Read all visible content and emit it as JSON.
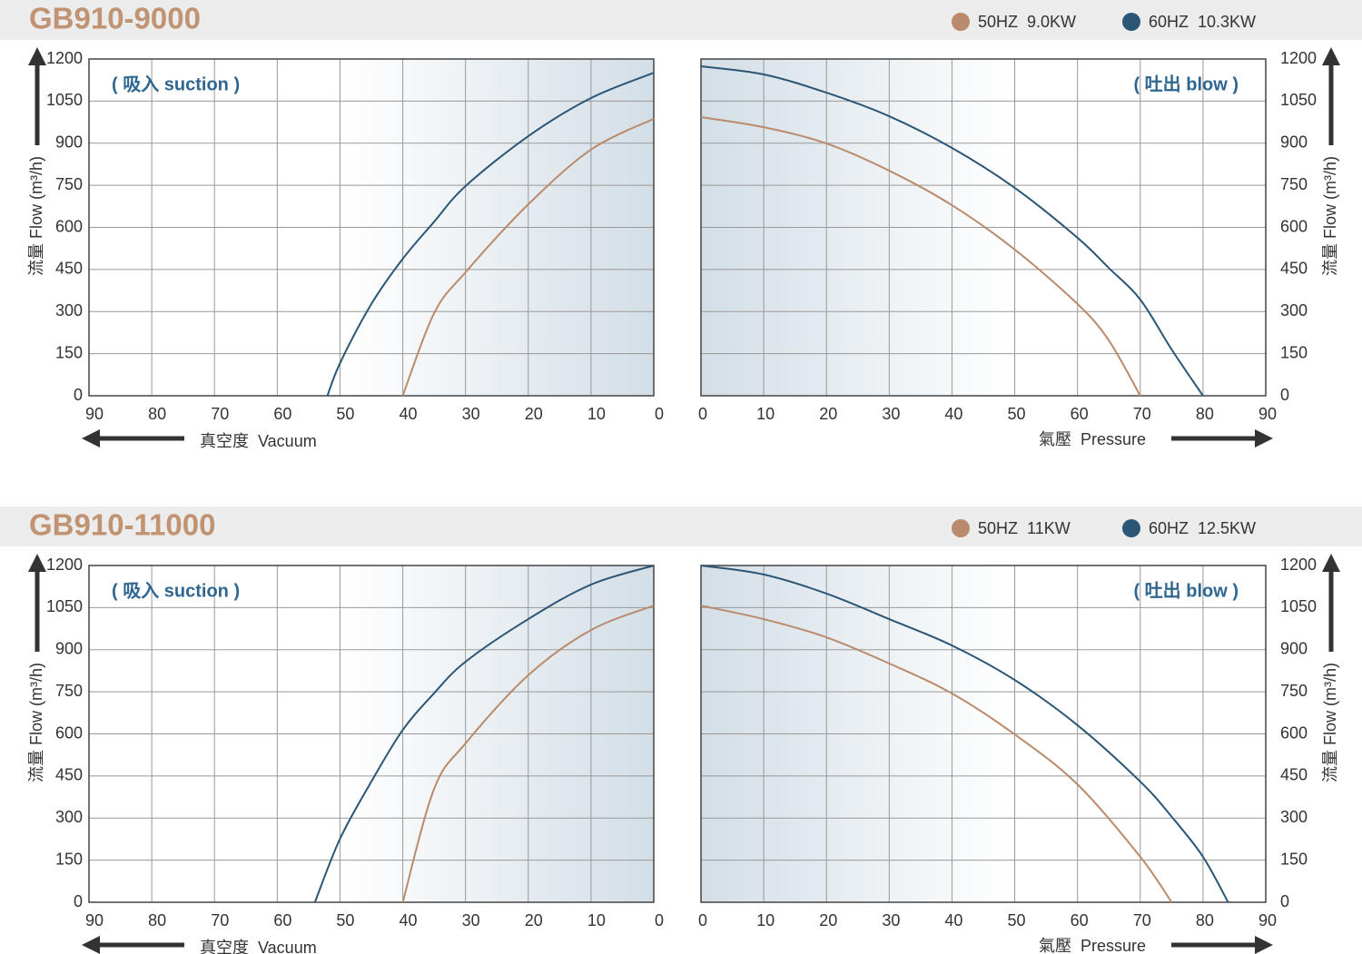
{
  "chart_data": [
    {
      "type": "line",
      "title": "GB910-9000",
      "series": [
        {
          "name": "50HZ  9.0KW",
          "color": "#b98b6c"
        },
        {
          "name": "60HZ  10.3KW",
          "color": "#2c5675"
        }
      ],
      "panels": [
        {
          "annotation": "( 吸入 suction )",
          "x_label": "真空度  Vacuum",
          "y_label": "流量 Flow (m³/h)",
          "xlim": [
            90,
            0
          ],
          "xticks": [
            90,
            80,
            70,
            60,
            50,
            40,
            30,
            20,
            10,
            0
          ],
          "ylim": [
            0,
            1200
          ],
          "yticks": [
            0,
            150,
            300,
            450,
            600,
            750,
            900,
            1050,
            1200
          ],
          "grid": true,
          "x": [
            52,
            50,
            45,
            40,
            35,
            30,
            20,
            10,
            0
          ],
          "series": [
            {
              "values": [
                null,
                null,
                null,
                0,
                294,
                440,
                682,
                877,
                987
              ]
            },
            {
              "values": [
                0,
                116,
                327,
                488,
                620,
                747,
                925,
                1061,
                1151
              ]
            }
          ]
        },
        {
          "annotation": "( 吐出 blow )",
          "x_label": "氣壓  Pressure",
          "y_label": "流量 Flow (m³/h)",
          "xlim": [
            0,
            90
          ],
          "xticks": [
            0,
            10,
            20,
            30,
            40,
            50,
            60,
            70,
            80,
            90
          ],
          "ylim": [
            0,
            1200
          ],
          "yticks": [
            0,
            150,
            300,
            450,
            600,
            750,
            900,
            1050,
            1200
          ],
          "grid": true,
          "x": [
            0,
            10,
            20,
            30,
            40,
            50,
            60,
            65,
            70,
            75,
            80
          ],
          "series": [
            {
              "values": [
                993,
                957,
                899,
                802,
                679,
                521,
                327,
                197,
                0,
                null,
                null
              ]
            },
            {
              "values": [
                1174,
                1145,
                1080,
                996,
                883,
                741,
                563,
                455,
                343,
                165,
                0
              ]
            }
          ]
        }
      ]
    },
    {
      "type": "line",
      "title": "GB910-11000",
      "series": [
        {
          "name": "50HZ  11KW",
          "color": "#b98b6c"
        },
        {
          "name": "60HZ  12.5KW",
          "color": "#2c5675"
        }
      ],
      "panels": [
        {
          "annotation": "( 吸入 suction )",
          "x_label": "真空度  Vacuum",
          "y_label": "流量 Flow (m³/h)",
          "xlim": [
            90,
            0
          ],
          "xticks": [
            90,
            80,
            70,
            60,
            50,
            40,
            30,
            20,
            10,
            0
          ],
          "ylim": [
            0,
            1200
          ],
          "yticks": [
            0,
            150,
            300,
            450,
            600,
            750,
            900,
            1050,
            1200
          ],
          "grid": true,
          "x": [
            54,
            50,
            45,
            40,
            35,
            30,
            20,
            10,
            0
          ],
          "series": [
            {
              "values": [
                null,
                null,
                null,
                0,
                404,
                566,
                809,
                970,
                1057
              ]
            },
            {
              "values": [
                0,
                226,
                430,
                614,
                745,
                857,
                1009,
                1132,
                1200
              ]
            }
          ]
        },
        {
          "annotation": "( 吐出 blow )",
          "x_label": "氣壓  Pressure",
          "y_label": "流量 Flow (m³/h)",
          "xlim": [
            0,
            90
          ],
          "xticks": [
            0,
            10,
            20,
            30,
            40,
            50,
            60,
            70,
            80,
            90
          ],
          "ylim": [
            0,
            1200
          ],
          "yticks": [
            0,
            150,
            300,
            450,
            600,
            750,
            900,
            1050,
            1200
          ],
          "grid": true,
          "x": [
            0,
            10,
            20,
            30,
            40,
            50,
            60,
            70,
            75,
            80,
            84
          ],
          "series": [
            {
              "values": [
                1057,
                1009,
                944,
                851,
                744,
                598,
                420,
                162,
                0,
                null,
                null
              ]
            },
            {
              "values": [
                1200,
                1168,
                1100,
                1009,
                915,
                792,
                631,
                430,
                305,
                162,
                0
              ]
            }
          ]
        }
      ]
    }
  ]
}
